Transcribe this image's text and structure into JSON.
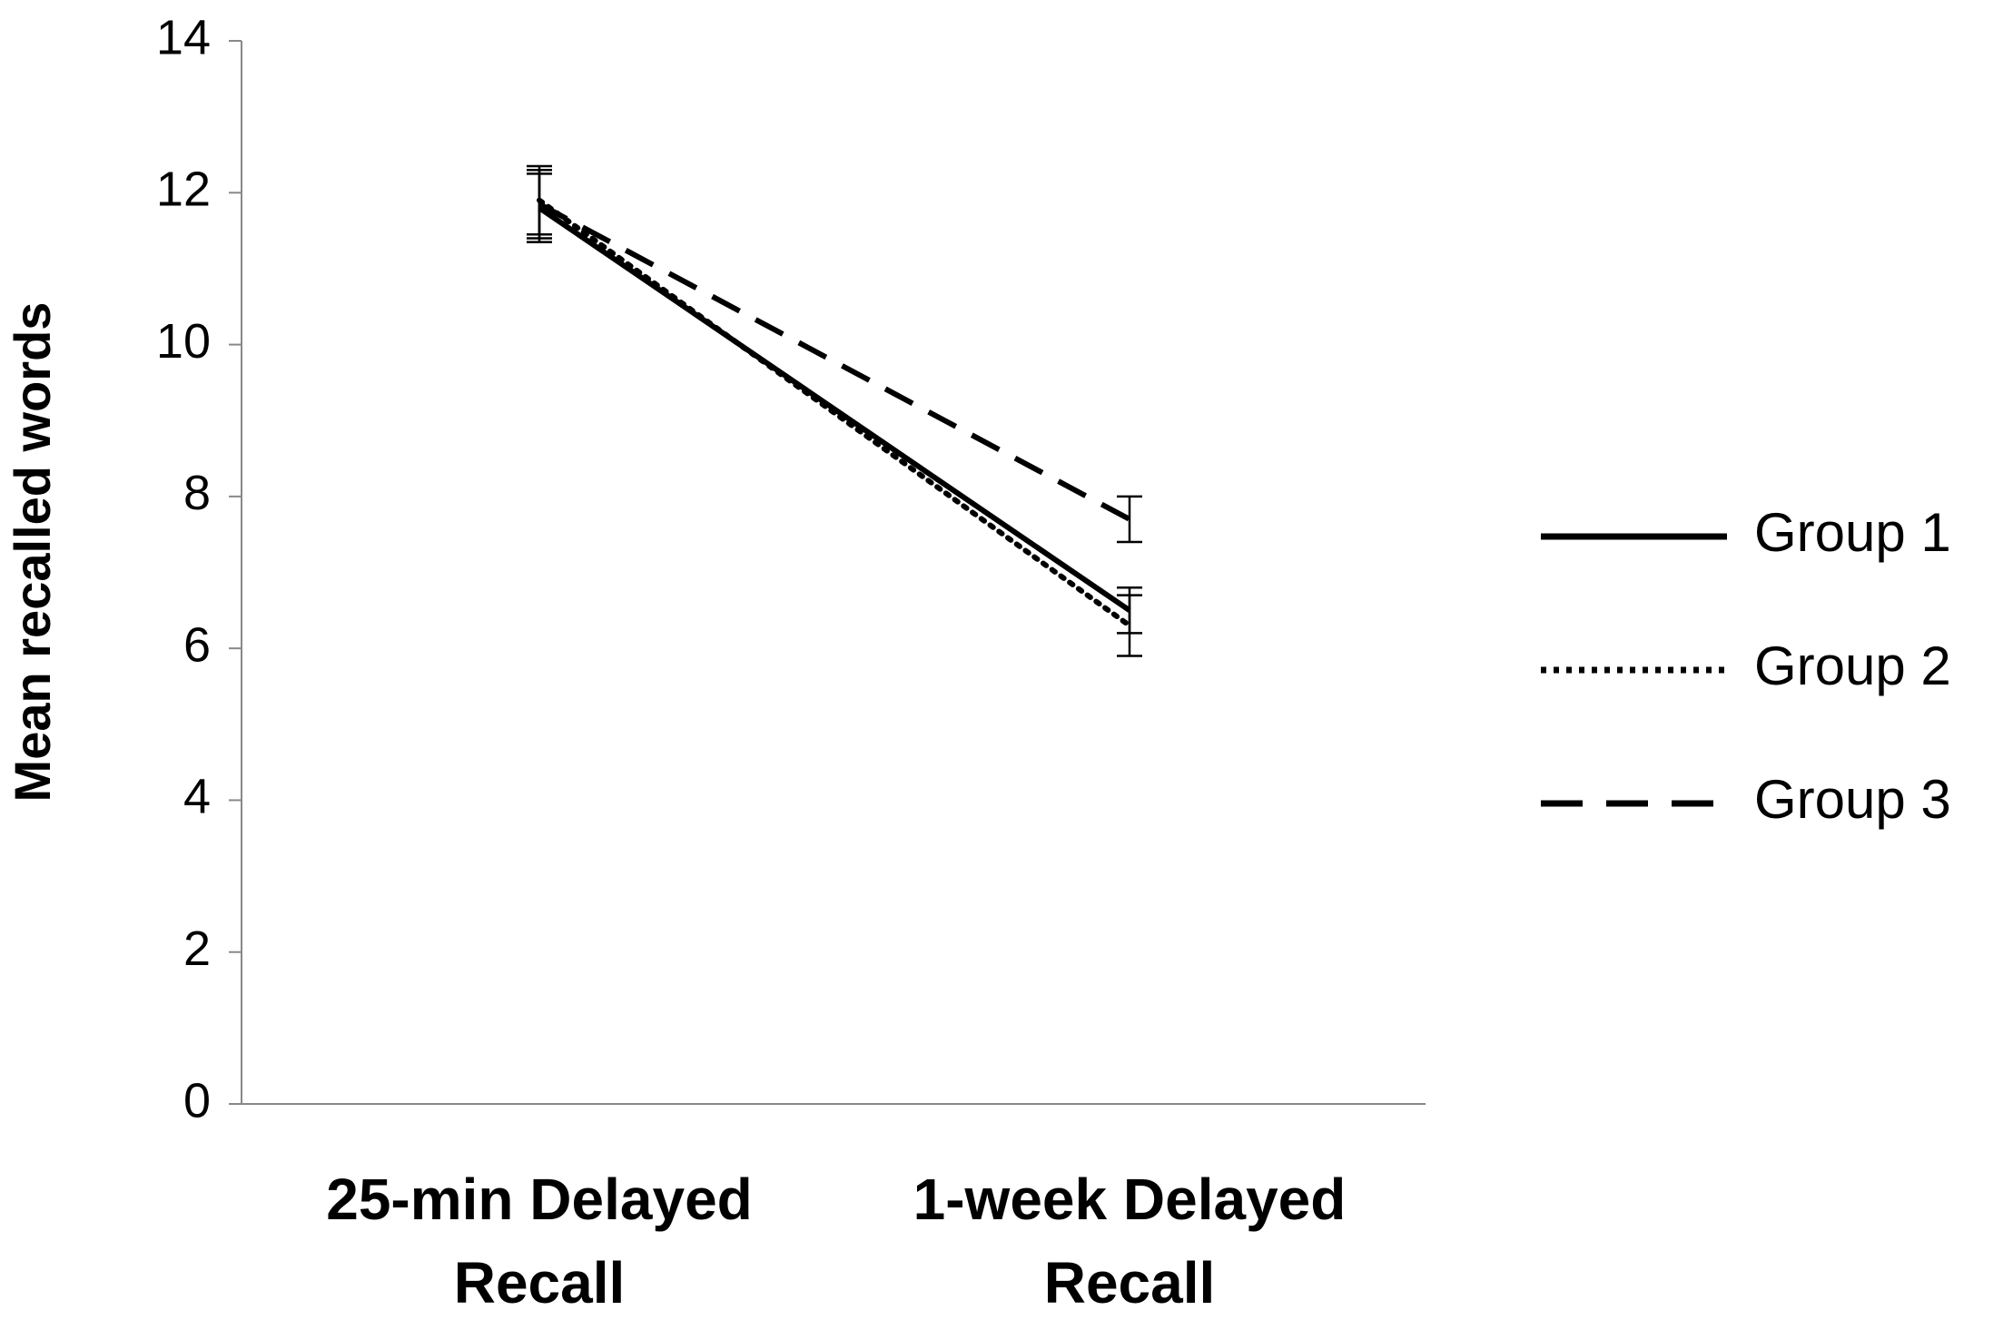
{
  "chart_data": {
    "type": "line",
    "ylabel": "Mean recalled words",
    "categories": [
      "25-min Delayed Recall",
      "1-week Delayed Recall"
    ],
    "series": [
      {
        "name": "Group 1",
        "color": "#000000",
        "dash": "solid",
        "values": [
          11.8,
          6.5
        ],
        "errors": [
          0.45,
          0.3
        ]
      },
      {
        "name": "Group 2",
        "color": "#000000",
        "dash": "dotted",
        "values": [
          11.9,
          6.3
        ],
        "errors": [
          0.45,
          0.4
        ]
      },
      {
        "name": "Group 3",
        "color": "#000000",
        "dash": "dashed",
        "values": [
          11.85,
          7.7
        ],
        "errors": [
          0.45,
          0.3
        ]
      }
    ],
    "ylim": [
      0,
      14
    ],
    "yticks": [
      0,
      2,
      4,
      6,
      8,
      10,
      12,
      14
    ],
    "grid": false,
    "legend": "right"
  }
}
